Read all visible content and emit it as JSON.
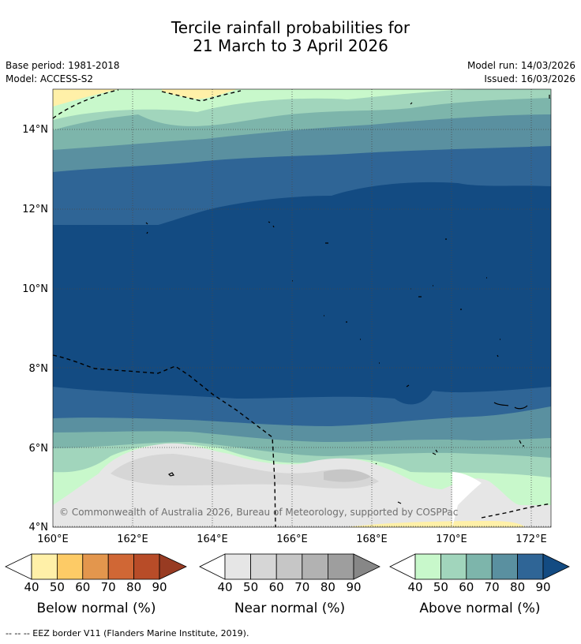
{
  "title": {
    "line1": "Tercile rainfall probabilities for",
    "line2": "21 March to 3 April 2026"
  },
  "meta": {
    "base_period": "Base period: 1981-2018",
    "model": "Model: ACCESS-S2",
    "model_run": "Model run: 14/03/2026",
    "issued": "Issued: 16/03/2026"
  },
  "map": {
    "lat_labels": [
      "14°N",
      "12°N",
      "10°N",
      "8°N",
      "6°N",
      "4°N"
    ],
    "lon_labels": [
      "160°E",
      "162°E",
      "164°E",
      "166°E",
      "168°E",
      "170°E",
      "172°E"
    ],
    "copyright": "© Commonwealth of Australia 2026, Bureau of Meteorology, supported by COSPPac"
  },
  "colorbars": [
    {
      "name": "below",
      "label": "Below normal (%)",
      "ticks": [
        "40",
        "50",
        "60",
        "70",
        "80",
        "90"
      ],
      "colors": [
        "#fff0a8",
        "#fdcb66",
        "#e3964d",
        "#d06735",
        "#b84c28",
        "#983b22"
      ]
    },
    {
      "name": "near",
      "label": "Near normal (%)",
      "ticks": [
        "40",
        "50",
        "60",
        "70",
        "80",
        "90"
      ],
      "colors": [
        "#e6e6e6",
        "#d6d6d6",
        "#c6c6c6",
        "#b2b2b2",
        "#9e9e9e",
        "#878787"
      ]
    },
    {
      "name": "above",
      "label": "Above normal (%)",
      "ticks": [
        "40",
        "50",
        "60",
        "70",
        "80",
        "90"
      ],
      "colors": [
        "#c8f8cb",
        "#a1d5bc",
        "#7db5ab",
        "#5a90a0",
        "#2f6596",
        "#134b82"
      ]
    }
  ],
  "footnote": "--  --  -- EEZ border V11 (Flanders Marine Institute, 2019)."
}
